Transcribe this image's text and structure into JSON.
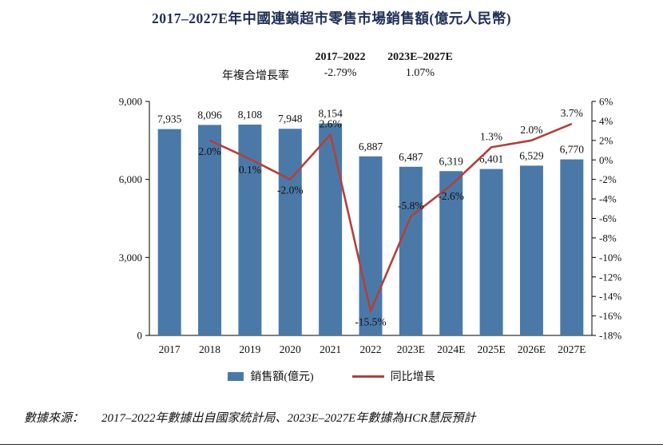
{
  "title": "2017–2027E年中國連鎖超市零售市場銷售額(億元人民幣)",
  "cagr": {
    "label": "年複合增長率",
    "periods": [
      {
        "range": "2017–2022",
        "value": "-2.79%"
      },
      {
        "range": "2023E–2027E",
        "value": "1.07%"
      }
    ]
  },
  "chart_data": {
    "type": "bar+line",
    "title": "2017–2027E年中國連鎖超市零售市場銷售額(億元人民幣)",
    "categories": [
      "2017",
      "2018",
      "2019",
      "2020",
      "2021",
      "2022",
      "2023E",
      "2024E",
      "2025E",
      "2026E",
      "2027E"
    ],
    "series": [
      {
        "name": "銷售額(億元)",
        "type": "bar",
        "color": "#4a79a8",
        "values": [
          7935,
          8096,
          8108,
          7948,
          8154,
          6887,
          6487,
          6319,
          6401,
          6529,
          6770
        ],
        "labels": [
          "7,935",
          "8,096",
          "8,108",
          "7,948",
          "8,154",
          "6,887",
          "6,487",
          "6,319",
          "6,401",
          "6,529",
          "6,770"
        ]
      },
      {
        "name": "同比增長",
        "type": "line",
        "color": "#b0413c",
        "values": [
          null,
          2.0,
          0.1,
          -2.0,
          2.6,
          -15.5,
          -5.8,
          -2.6,
          1.3,
          2.0,
          3.7
        ],
        "labels": [
          "",
          "2.0%",
          "0.1%",
          "-2.0%",
          "2.6%",
          "-15.5%",
          "-5.8%",
          "-2.6%",
          "1.3%",
          "2.0%",
          "3.7%"
        ],
        "label_side": [
          "",
          "below",
          "below",
          "below",
          "above",
          "below",
          "above",
          "below",
          "above",
          "above",
          "above"
        ]
      }
    ],
    "left_axis": {
      "min": 0,
      "max": 9000,
      "tick_values": [
        9000,
        6000,
        3000,
        0
      ],
      "ticks": [
        "9,000",
        "6,000",
        "3,000",
        "0"
      ]
    },
    "right_axis": {
      "min": -18,
      "max": 6,
      "tick_values": [
        6,
        4,
        2,
        0,
        -2,
        -4,
        -6,
        -8,
        -10,
        -12,
        -14,
        -16,
        -18
      ],
      "ticks": [
        "6%",
        "4%",
        "2%",
        "0%",
        "-2%",
        "-4%",
        "-6%",
        "-8%",
        "-10%",
        "-12%",
        "-14%",
        "-16%",
        "-18%"
      ]
    },
    "grid": false,
    "legend_position": "bottom"
  },
  "legend": [
    {
      "label": "銷售額(億元)",
      "type": "bar",
      "color": "#4a79a8"
    },
    {
      "label": "同比增長",
      "type": "line",
      "color": "#b0413c"
    }
  ],
  "source": {
    "label": "數據來源：",
    "text": "2017–2022年數據出自國家統計局、2023E–2027E年數據為HCR慧辰預計"
  }
}
